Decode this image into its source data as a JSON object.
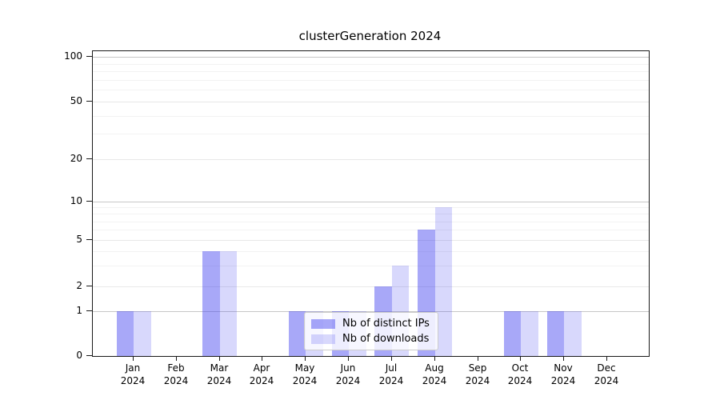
{
  "chart_data": {
    "type": "bar",
    "title": "clusterGeneration 2024",
    "categories": [
      "Jan",
      "Feb",
      "Mar",
      "Apr",
      "May",
      "Jun",
      "Jul",
      "Aug",
      "Sep",
      "Oct",
      "Nov",
      "Dec"
    ],
    "year_label": "2024",
    "series": [
      {
        "name": "Nb of distinct IPs",
        "color": "rgba(62,62,240,0.45)",
        "values": [
          1,
          0,
          4,
          0,
          1,
          1,
          2,
          6,
          0,
          1,
          1,
          0
        ]
      },
      {
        "name": "Nb of downloads",
        "color": "rgba(62,62,240,0.20)",
        "values": [
          1,
          0,
          4,
          0,
          1,
          1,
          3,
          9,
          0,
          1,
          1,
          0
        ]
      }
    ],
    "y_axis": {
      "tick_labels": [
        "0",
        "1",
        "2",
        "5",
        "10",
        "20",
        "50",
        "100"
      ],
      "tick_values": [
        0,
        1,
        2,
        5,
        10,
        20,
        50,
        100
      ],
      "scale": "log-like (symlog)",
      "major_grid_values": [
        1,
        10,
        100
      ],
      "minor_grid_values": [
        2,
        3,
        4,
        5,
        6,
        7,
        8,
        9,
        20,
        30,
        40,
        50,
        60,
        70,
        80,
        90
      ]
    },
    "colors": {
      "major_gridline": "#c7c7c7",
      "labeled_gridline": "#e8e8e8",
      "minor_gridline": "#f2f2f2",
      "axis_spine": "#1a1a1a"
    },
    "legend_position": "inside-bottom-center",
    "grid": "on"
  }
}
